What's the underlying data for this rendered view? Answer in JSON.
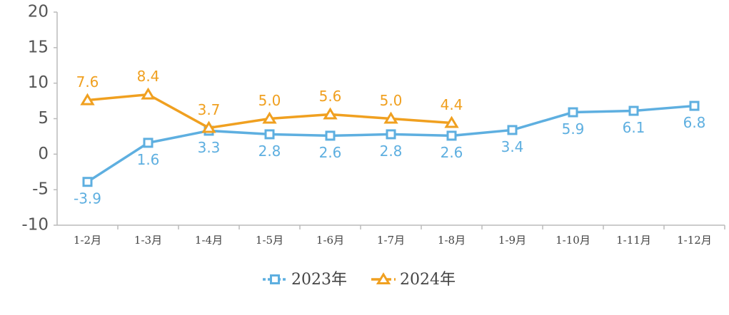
{
  "chart_data": {
    "type": "line",
    "categories": [
      "1-2月",
      "1-3月",
      "1-4月",
      "1-5月",
      "1-6月",
      "1-7月",
      "1-8月",
      "1-9月",
      "1-10月",
      "1-11月",
      "1-12月"
    ],
    "series": [
      {
        "name": "2023年",
        "color": "#5eafe0",
        "marker": "square",
        "values": [
          -3.9,
          1.6,
          3.3,
          2.8,
          2.6,
          2.8,
          2.6,
          3.4,
          5.9,
          6.1,
          6.8
        ]
      },
      {
        "name": "2024年",
        "color": "#f0a020",
        "marker": "triangle",
        "values": [
          7.6,
          8.4,
          3.7,
          5,
          5.6,
          5,
          4.4,
          null,
          null,
          null,
          null
        ],
        "value_labels": [
          "7.6",
          "8.4",
          "3.7",
          "5.0",
          "5.6",
          "5.0",
          "4.4",
          null,
          null,
          null,
          null
        ]
      }
    ],
    "ylim": [
      -10,
      20
    ],
    "yticks": [
      -10,
      -5,
      0,
      5,
      10,
      15,
      20
    ],
    "grid": false,
    "legend": "bottom"
  }
}
